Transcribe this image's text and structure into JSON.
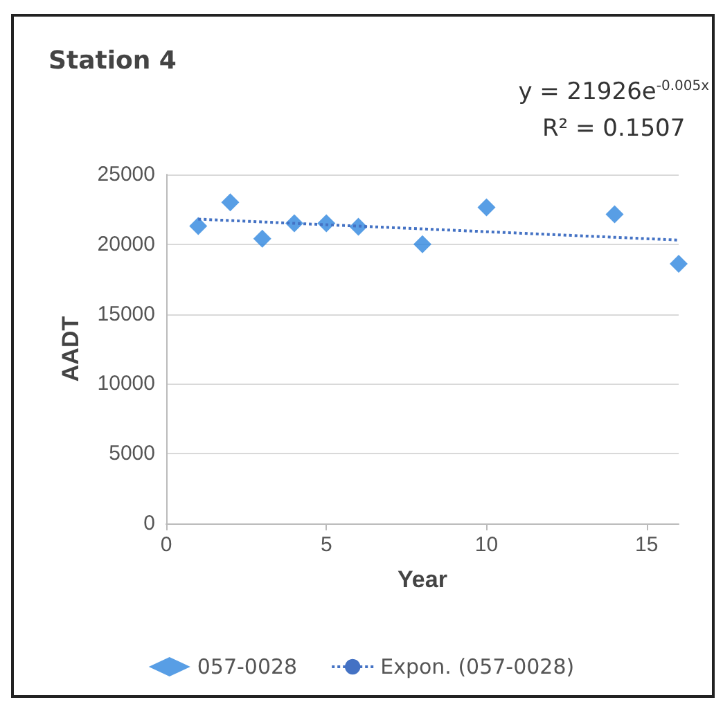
{
  "chart_data": {
    "type": "scatter",
    "title": "Station 4",
    "xlabel": "Year",
    "ylabel": "AADT",
    "annotations": [
      "y = 21926e$^{-0.005x}$",
      "R² = 0.1507"
    ],
    "series": [
      {
        "name": "057-0028",
        "color": "#2e86de",
        "x": [
          1,
          2,
          3,
          4,
          5,
          6,
          8,
          10,
          14,
          16
        ],
        "values": [
          21300,
          23000,
          20400,
          21500,
          21500,
          21250,
          20000,
          22650,
          22150,
          18600
        ]
      },
      {
        "name": "Expon. (057-0028)",
        "type": "line",
        "color": "#4472c4",
        "marker": "none",
        "line_style": "dotted",
        "x": [
          1,
          16
        ],
        "values": [
          21800,
          20300
        ]
      }
    ],
    "xlim": [
      0,
      16
    ],
    "xticks": [
      0,
      5,
      10,
      15
    ],
    "ylim": [
      0,
      25000
    ],
    "yticks": [
      0,
      5000,
      10000,
      15000,
      20000,
      25000
    ],
    "grid": "y",
    "legend": "bottom",
    "marker": "diamond"
  }
}
